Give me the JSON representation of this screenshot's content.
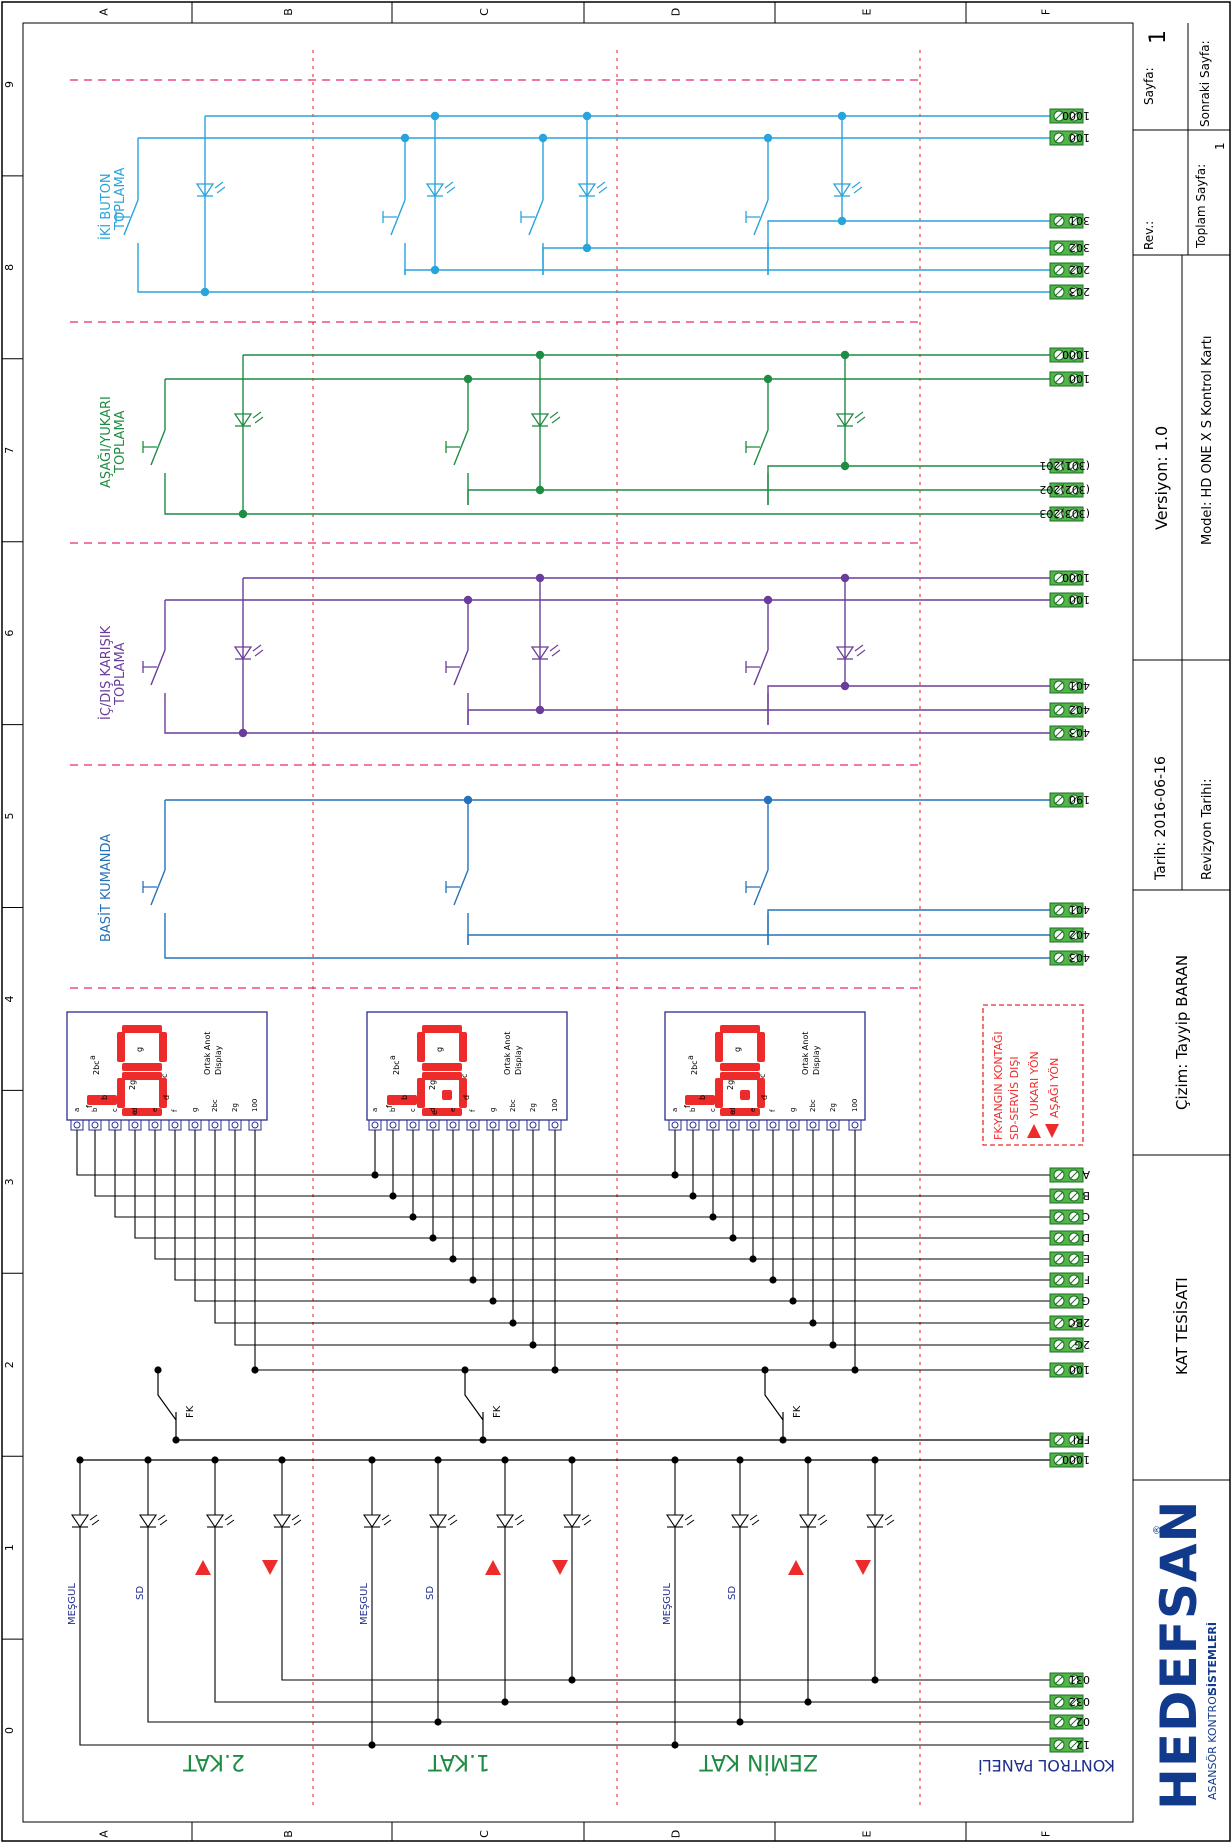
{
  "frame": {
    "cols": [
      "A",
      "B",
      "C",
      "D",
      "E",
      "F"
    ],
    "rows": [
      "0",
      "1",
      "2",
      "3",
      "4",
      "5",
      "6",
      "7",
      "8",
      "9"
    ]
  },
  "title_block": {
    "page_label": "Sayfa:",
    "page_value": "1",
    "next_page_label": "Sonraki Sayfa:",
    "rev_label": "Rev.:",
    "total_pages_label": "Toplam Sayfa:",
    "total_pages_value": "1",
    "version": "Versiyon: 1.0",
    "model": "Model: HD ONE X S Kontrol Kartı",
    "date": "Tarih: 2016-06-16",
    "revision_date_label": "Revizyon Tarihi:",
    "drawn_by": "Çizim:  Tayyip BARAN",
    "drawing_title": "KAT TESİSATI",
    "logo_text": "HEDEFSAN",
    "logo_registered": "®",
    "logo_sub_a": "ASANSÖR KONTROL ",
    "logo_sub_b": "SİSTEMLERİ"
  },
  "sections": {
    "iki_buton": {
      "title": "İKİ BUTON TOPLAMA",
      "color": "#29a3dc",
      "terminals": [
        "1000",
        "100",
        "301",
        "302",
        "202",
        "203"
      ]
    },
    "asagi_yukari": {
      "title": "AŞAĞI/YUKARI TOPLAMA",
      "color": "#1e8c43",
      "terminals": [
        "1000",
        "100",
        "(301)201",
        "(302)202",
        "(303)203"
      ]
    },
    "ic_dis": {
      "title": "İÇ/DIŞ KARIŞIK TOPLAMA",
      "color": "#6a3d9a",
      "terminals": [
        "1000",
        "100",
        "401",
        "402",
        "403"
      ]
    },
    "basit": {
      "title": "BASİT KUMANDA",
      "color": "#2672b8",
      "terminals": [
        "190",
        "401",
        "402",
        "403"
      ]
    },
    "display": {
      "color": "#2b2d8f",
      "seg_color": "#ee2b2b",
      "label": "Ortak Anot Display",
      "pin_labels": [
        "a",
        "b",
        "c",
        "d",
        "e",
        "f",
        "g",
        "2bc",
        "2g",
        "100"
      ],
      "seg_letters": [
        "a",
        "b",
        "c",
        "d",
        "e",
        "f",
        "g"
      ],
      "seg_extra": [
        "2bc",
        "2g"
      ],
      "terminals": [
        "A",
        "B",
        "C",
        "D",
        "E",
        "F",
        "G",
        "2BC",
        "2G",
        "100"
      ]
    },
    "legend": {
      "line1": "FK-YANGIN KONTAĞI",
      "line2": "SD-SERVİS DIŞI",
      "line3": "YUKARI YÖN",
      "line4": "AŞAĞI YÖN"
    },
    "fk": {
      "label": "FK",
      "terminals": [
        "FRI",
        "1000"
      ]
    },
    "leds": {
      "labels": [
        "MEŞGUL",
        "SD"
      ],
      "terminals": [
        "031",
        "032",
        "02",
        "12"
      ]
    }
  },
  "floors": [
    "2.KAT",
    "1.KAT",
    "ZEMİN KAT",
    "KONTROL PANELİ"
  ]
}
